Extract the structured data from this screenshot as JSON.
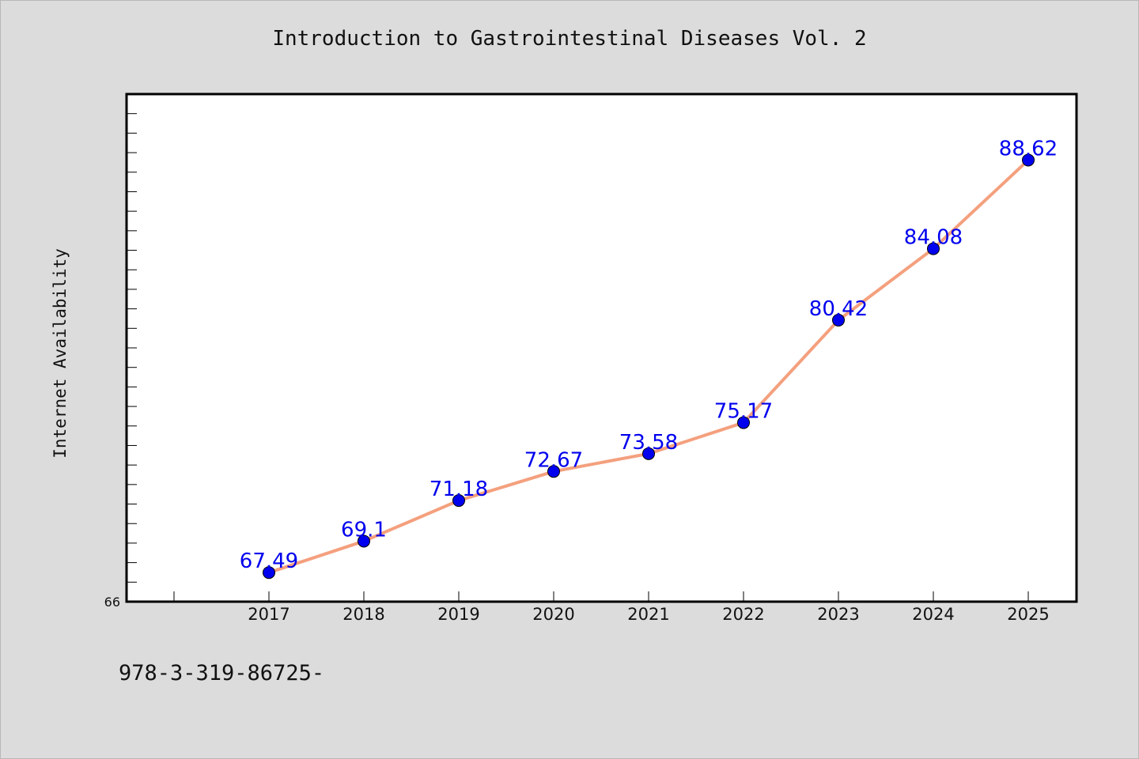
{
  "chart_data": {
    "type": "line",
    "title": "Introduction to Gastrointestinal Diseases Vol. 2",
    "xlabel": "",
    "ylabel": "Internet Availability",
    "x": [
      "2017",
      "2018",
      "2019",
      "2020",
      "2021",
      "2022",
      "2023",
      "2024",
      "2025"
    ],
    "series": [
      {
        "values": [
          67.49,
          69.1,
          71.18,
          72.67,
          73.58,
          75.17,
          80.42,
          84.08,
          88.62
        ]
      }
    ],
    "data_labels": [
      "67.49",
      "69.1",
      "71.18",
      "72.67",
      "73.58",
      "75.17",
      "80.42",
      "84.08",
      "88.62"
    ],
    "ylim": [
      66,
      92
    ],
    "y_tick_labels": [
      "66"
    ],
    "grid": false,
    "line_color": "#f4a07e",
    "marker_color": "#0000ee",
    "label_color": "#0000ee"
  },
  "footer": {
    "text": "978-3-319-86725-"
  }
}
